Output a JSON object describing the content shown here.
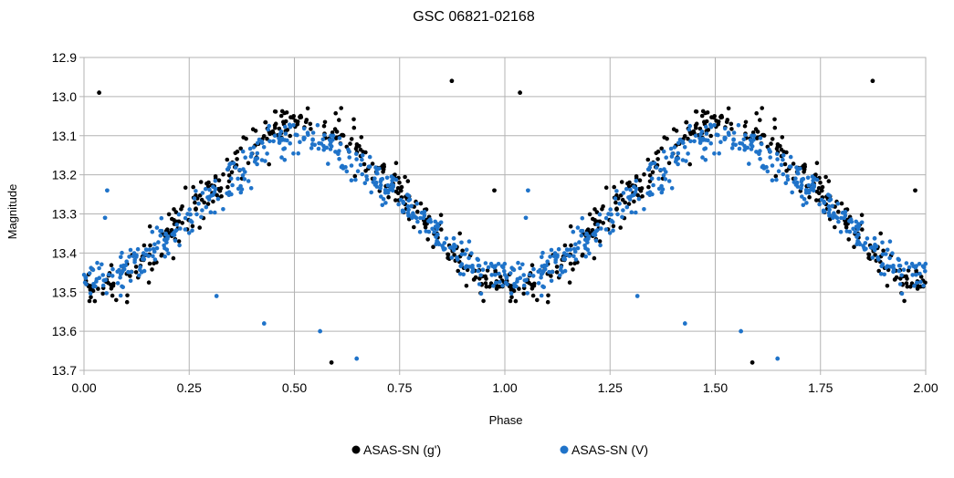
{
  "chart_data": {
    "type": "scatter",
    "title": "GSC 06821-02168",
    "xlabel": "Phase",
    "ylabel": "Magnitude",
    "xlim": [
      0,
      2
    ],
    "ylim": [
      12.9,
      13.7
    ],
    "y_inverted": true,
    "grid": true,
    "legend_position": "bottom",
    "x_ticks": [
      "0.00",
      "0.25",
      "0.50",
      "0.75",
      "1.00",
      "1.25",
      "1.50",
      "1.75",
      "2.00"
    ],
    "y_ticks": [
      "12.9",
      "13.0",
      "13.1",
      "13.2",
      "13.3",
      "13.4",
      "13.5",
      "13.6",
      "13.7"
    ],
    "light_curve": {
      "period_phases": 1,
      "minimum_phase": 0.52,
      "g_prime": {
        "max_magnitude": 13.06,
        "min_magnitude": 13.49,
        "scatter": 0.025
      },
      "V": {
        "max_magnitude": 13.1,
        "min_magnitude": 13.47,
        "scatter": 0.025
      }
    },
    "series": [
      {
        "name": "ASAS-SN (g')",
        "color": "#000000",
        "outliers": [
          {
            "x": 0.036,
            "y": 12.99
          },
          {
            "x": 0.874,
            "y": 12.96
          },
          {
            "x": 0.975,
            "y": 13.24
          },
          {
            "x": 0.198,
            "y": 13.34
          },
          {
            "x": 0.588,
            "y": 13.68
          },
          {
            "x": 1.036,
            "y": 12.99
          },
          {
            "x": 1.874,
            "y": 12.96
          },
          {
            "x": 1.975,
            "y": 13.24
          },
          {
            "x": 1.198,
            "y": 13.34
          },
          {
            "x": 1.588,
            "y": 13.68
          }
        ]
      },
      {
        "name": "ASAS-SN (V)",
        "color": "#1f73c9",
        "outliers": [
          {
            "x": 0.055,
            "y": 13.24
          },
          {
            "x": 0.05,
            "y": 13.31
          },
          {
            "x": 0.315,
            "y": 13.51
          },
          {
            "x": 0.428,
            "y": 13.58
          },
          {
            "x": 0.648,
            "y": 13.67
          },
          {
            "x": 0.561,
            "y": 13.6
          },
          {
            "x": 1.055,
            "y": 13.24
          },
          {
            "x": 1.05,
            "y": 13.31
          },
          {
            "x": 1.315,
            "y": 13.51
          },
          {
            "x": 1.428,
            "y": 13.58
          },
          {
            "x": 1.648,
            "y": 13.67
          },
          {
            "x": 1.561,
            "y": 13.6
          }
        ]
      }
    ]
  }
}
